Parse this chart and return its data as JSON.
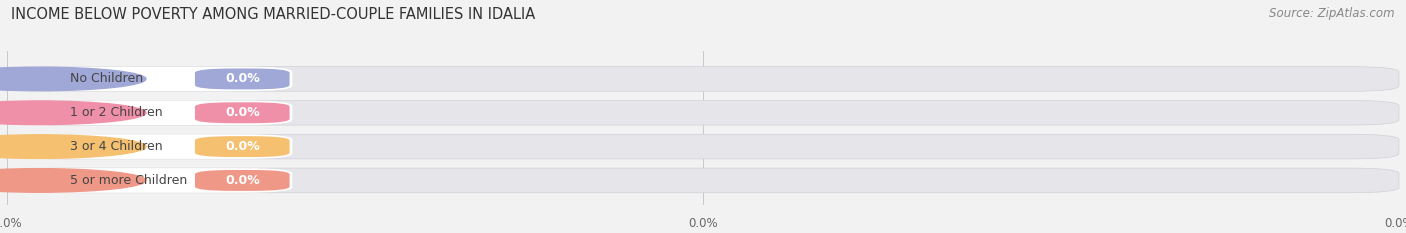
{
  "title": "INCOME BELOW POVERTY AMONG MARRIED-COUPLE FAMILIES IN IDALIA",
  "source": "Source: ZipAtlas.com",
  "categories": [
    "No Children",
    "1 or 2 Children",
    "3 or 4 Children",
    "5 or more Children"
  ],
  "values": [
    0.0,
    0.0,
    0.0,
    0.0
  ],
  "bar_colors": [
    "#a0a8d8",
    "#f090a8",
    "#f5c070",
    "#f09888"
  ],
  "background_color": "#f2f2f2",
  "bar_bg_color": "#e5e5ea",
  "title_fontsize": 10.5,
  "source_fontsize": 8.5,
  "category_fontsize": 9,
  "value_fontsize": 9
}
